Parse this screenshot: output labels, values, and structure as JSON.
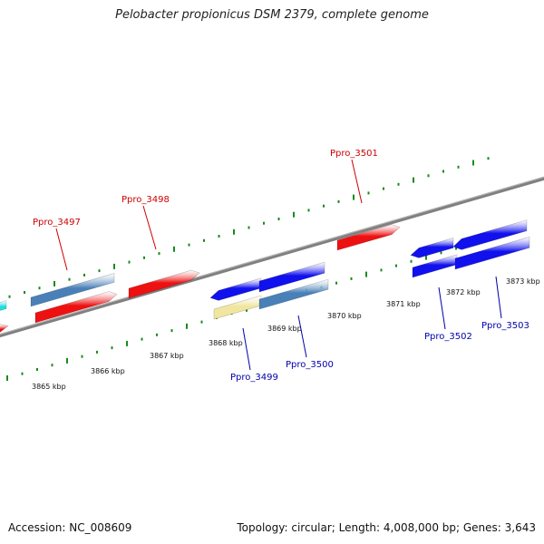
{
  "title": "Pelobacter propionicus DSM 2379, complete genome",
  "footer": {
    "accession": "Accession: NC_008609",
    "summary": "Topology: circular; Length: 4,008,000 bp; Genes: 3,643"
  },
  "colors": {
    "forward_gene": "#ee1111",
    "reverse_gene": "#1111ee",
    "cds_blue": "#4a80b8",
    "pseudo": "#f0e6a0",
    "cyan": "#22dddd",
    "tick": "#1a8a1a",
    "backbone": "#808080",
    "label_forward": "#cc0000",
    "label_reverse": "#0000aa"
  },
  "genes": [
    {
      "name": "Ppro_3497",
      "strand": "forward"
    },
    {
      "name": "Ppro_3498",
      "strand": "forward"
    },
    {
      "name": "Ppro_3501",
      "strand": "forward"
    },
    {
      "name": "Ppro_3499",
      "strand": "reverse"
    },
    {
      "name": "Ppro_3500",
      "strand": "reverse"
    },
    {
      "name": "Ppro_3502",
      "strand": "reverse"
    },
    {
      "name": "Ppro_3503",
      "strand": "reverse"
    }
  ],
  "ticks": [
    "3865 kbp",
    "3866 kbp",
    "3867 kbp",
    "3868 kbp",
    "3869 kbp",
    "3870 kbp",
    "3871 kbp",
    "3872 kbp",
    "3873 kbp"
  ]
}
